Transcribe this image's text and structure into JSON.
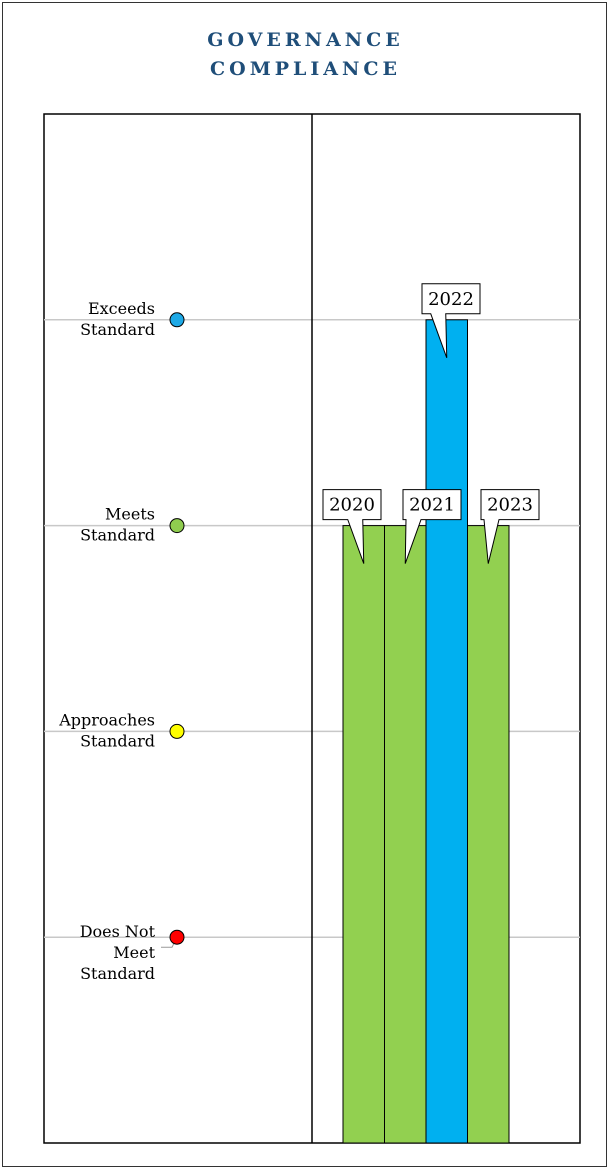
{
  "page": {
    "title_line1": "GOVERNANCE",
    "title_line2": "COMPLIANCE"
  },
  "chart_data": {
    "type": "bar",
    "title": "GOVERNANCE COMPLIANCE",
    "levels": [
      {
        "value": 1,
        "label_lines": [
          "Does Not",
          "Meet",
          "Standard"
        ],
        "dot_color": "#ff0000"
      },
      {
        "value": 2,
        "label_lines": [
          "Approaches",
          "Standard"
        ],
        "dot_color": "#ffff00"
      },
      {
        "value": 3,
        "label_lines": [
          "Meets",
          "Standard"
        ],
        "dot_color": "#8fcc4f"
      },
      {
        "value": 4,
        "label_lines": [
          "Exceeds",
          "Standard"
        ],
        "dot_color": "#1ea9e6"
      }
    ],
    "categories": [
      "2020",
      "2021",
      "2022",
      "2023"
    ],
    "values": [
      3,
      3,
      4,
      3
    ],
    "bar_colors": [
      "#92d050",
      "#92d050",
      "#00b0f0",
      "#92d050"
    ],
    "ylim": [
      0,
      5
    ],
    "grid": true
  }
}
